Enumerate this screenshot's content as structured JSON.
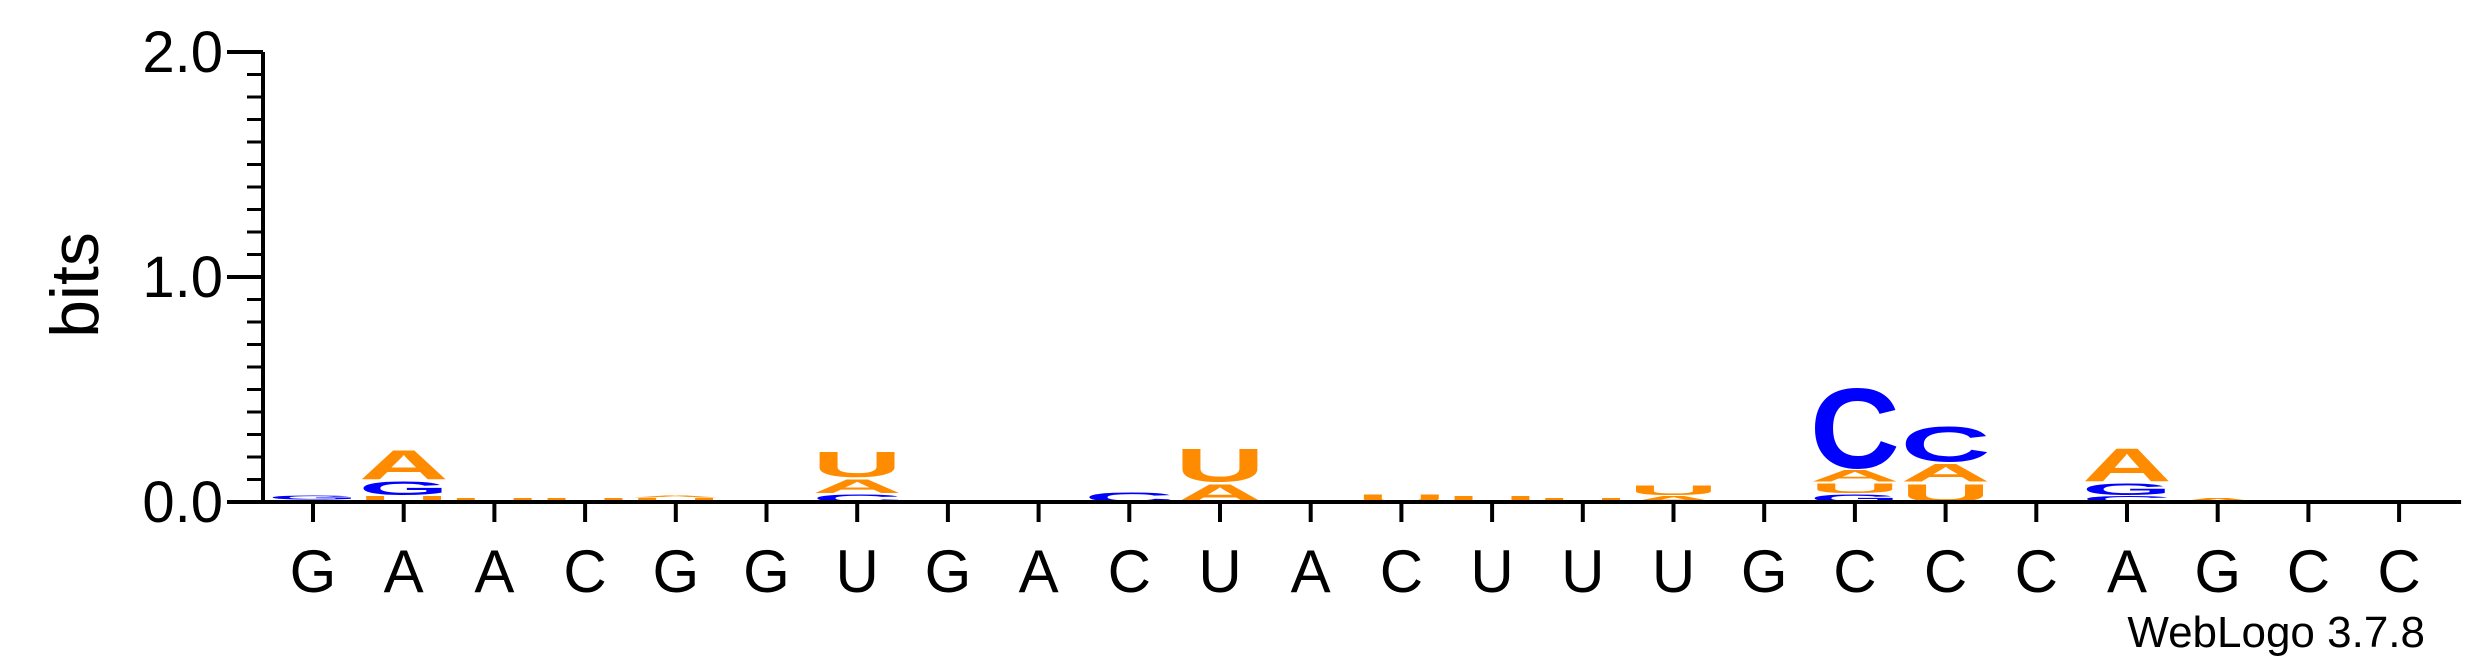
{
  "chart_data": {
    "type": "sequence-logo",
    "ylabel": "bits",
    "ylim": [
      0,
      2.0
    ],
    "yticks": [
      "0.0",
      "1.0",
      "2.0"
    ],
    "credit": "WebLogo 3.7.8",
    "colors": {
      "A": "#ff8c00",
      "U": "#ff8c00",
      "G": "#0000ff",
      "C": "#0000ff"
    },
    "positions": [
      {
        "label": "G",
        "stack": [
          {
            "base": "A",
            "bits": 0.01
          },
          {
            "base": "G",
            "bits": 0.02
          }
        ]
      },
      {
        "label": "A",
        "stack": [
          {
            "base": "U",
            "bits": 0.03
          },
          {
            "base": "G",
            "bits": 0.07
          },
          {
            "base": "A",
            "bits": 0.15
          }
        ]
      },
      {
        "label": "A",
        "stack": [
          {
            "base": "U",
            "bits": 0.02
          }
        ]
      },
      {
        "label": "C",
        "stack": [
          {
            "base": "U",
            "bits": 0.02
          }
        ]
      },
      {
        "label": "G",
        "stack": [
          {
            "base": "U",
            "bits": 0.02
          },
          {
            "base": "A",
            "bits": 0.01
          }
        ]
      },
      {
        "label": "G",
        "stack": []
      },
      {
        "label": "U",
        "stack": [
          {
            "base": "C",
            "bits": 0.04
          },
          {
            "base": "A",
            "bits": 0.07
          },
          {
            "base": "U",
            "bits": 0.13
          }
        ]
      },
      {
        "label": "G",
        "stack": [
          {
            "base": "A",
            "bits": 0.01
          }
        ]
      },
      {
        "label": "A",
        "stack": []
      },
      {
        "label": "C",
        "stack": [
          {
            "base": "C",
            "bits": 0.05
          }
        ]
      },
      {
        "label": "U",
        "stack": [
          {
            "base": "A",
            "bits": 0.09
          },
          {
            "base": "U",
            "bits": 0.17
          }
        ]
      },
      {
        "label": "A",
        "stack": []
      },
      {
        "label": "C",
        "stack": [
          {
            "base": "U",
            "bits": 0.04
          }
        ]
      },
      {
        "label": "U",
        "stack": [
          {
            "base": "U",
            "bits": 0.03
          }
        ]
      },
      {
        "label": "U",
        "stack": [
          {
            "base": "U",
            "bits": 0.02
          }
        ]
      },
      {
        "label": "U",
        "stack": [
          {
            "base": "A",
            "bits": 0.03
          },
          {
            "base": "U",
            "bits": 0.05
          }
        ]
      },
      {
        "label": "G",
        "stack": []
      },
      {
        "label": "C",
        "stack": [
          {
            "base": "G",
            "bits": 0.04
          },
          {
            "base": "U",
            "bits": 0.05
          },
          {
            "base": "A",
            "bits": 0.06
          },
          {
            "base": "C",
            "bits": 0.41
          }
        ]
      },
      {
        "label": "C",
        "stack": [
          {
            "base": "U",
            "bits": 0.09
          },
          {
            "base": "A",
            "bits": 0.09
          },
          {
            "base": "C",
            "bits": 0.18
          }
        ]
      },
      {
        "label": "C",
        "stack": []
      },
      {
        "label": "A",
        "stack": [
          {
            "base": "C",
            "bits": 0.03
          },
          {
            "base": "G",
            "bits": 0.06
          },
          {
            "base": "A",
            "bits": 0.17
          }
        ]
      },
      {
        "label": "G",
        "stack": [
          {
            "base": "A",
            "bits": 0.02
          }
        ]
      },
      {
        "label": "C",
        "stack": []
      },
      {
        "label": "C",
        "stack": []
      }
    ]
  }
}
